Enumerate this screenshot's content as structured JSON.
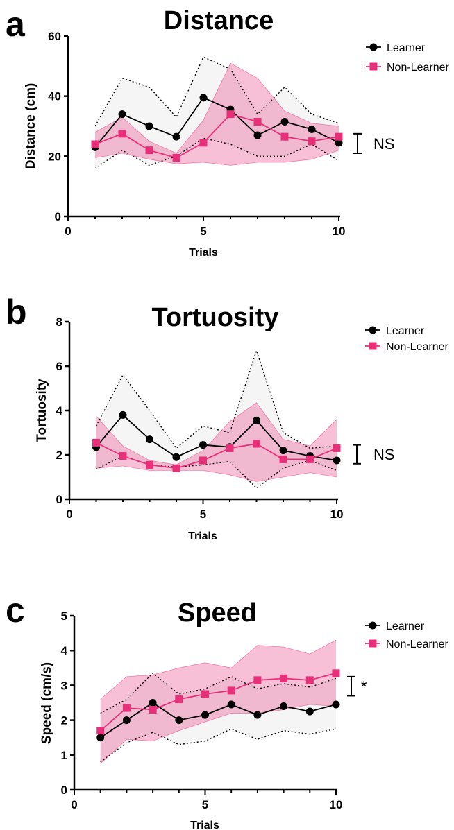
{
  "chart_data": [
    {
      "type": "line",
      "panel_label": "a",
      "title": "Distance",
      "xlabel": "Trials",
      "ylabel": "Distance (cm)",
      "xlim": [
        0,
        10
      ],
      "ylim": [
        0,
        60
      ],
      "xticks": [
        "0",
        "5",
        "10"
      ],
      "yticks": [
        "0",
        "20",
        "40",
        "60"
      ],
      "grid": false,
      "legend_position": "top-right",
      "x": [
        1,
        2,
        3,
        4,
        5,
        6,
        7,
        8,
        9,
        10
      ],
      "series": [
        {
          "name": "Learner",
          "color": "#000000",
          "marker": "circle",
          "values": [
            23.0,
            34.0,
            30.0,
            26.5,
            39.5,
            35.5,
            27.0,
            31.5,
            29.0,
            24.5
          ],
          "upper": [
            30.0,
            46.0,
            43.0,
            33.0,
            53.0,
            49.0,
            34.0,
            43.0,
            34.0,
            31.0
          ],
          "lower": [
            16.0,
            22.0,
            17.0,
            20.0,
            26.0,
            24.0,
            20.0,
            20.0,
            24.0,
            18.5
          ]
        },
        {
          "name": "Non-Learner",
          "color": "#e8307a",
          "marker": "square",
          "values": [
            24.0,
            27.5,
            22.0,
            19.5,
            24.5,
            34.0,
            31.5,
            26.5,
            25.0,
            26.5
          ],
          "upper": [
            28.0,
            33.0,
            25.0,
            21.0,
            32.0,
            51.0,
            46.0,
            35.0,
            31.0,
            30.0
          ],
          "lower": [
            19.5,
            21.0,
            19.0,
            17.5,
            18.0,
            17.0,
            18.0,
            18.0,
            19.0,
            22.0
          ]
        }
      ],
      "significance": "NS",
      "sig_range": [
        21.0,
        27.5
      ]
    },
    {
      "type": "line",
      "panel_label": "b",
      "title": "Tortuosity",
      "xlabel": "Trials",
      "ylabel": "Tortuosity",
      "xlim": [
        0,
        10
      ],
      "ylim": [
        0,
        8
      ],
      "xticks": [
        "0",
        "5",
        "10"
      ],
      "yticks": [
        "0",
        "2",
        "4",
        "6",
        "8"
      ],
      "grid": false,
      "legend_position": "top-right",
      "x": [
        1,
        2,
        3,
        4,
        5,
        6,
        7,
        8,
        9,
        10
      ],
      "series": [
        {
          "name": "Learner",
          "color": "#000000",
          "marker": "circle",
          "values": [
            2.35,
            3.8,
            2.7,
            1.9,
            2.45,
            2.35,
            3.55,
            2.2,
            1.95,
            1.75
          ],
          "upper": [
            3.3,
            5.6,
            4.0,
            2.3,
            3.3,
            3.0,
            6.7,
            3.0,
            2.3,
            2.4
          ],
          "lower": [
            1.35,
            1.95,
            1.55,
            1.45,
            1.55,
            1.7,
            0.5,
            1.4,
            1.75,
            1.3
          ]
        },
        {
          "name": "Non-Learner",
          "color": "#e8307a",
          "marker": "square",
          "values": [
            2.55,
            1.95,
            1.55,
            1.4,
            1.75,
            2.3,
            2.5,
            1.8,
            1.8,
            2.3
          ],
          "upper": [
            3.75,
            2.4,
            1.75,
            1.55,
            2.2,
            3.5,
            4.35,
            2.7,
            2.4,
            3.6
          ],
          "lower": [
            1.4,
            1.5,
            1.3,
            1.3,
            1.3,
            1.1,
            0.8,
            1.0,
            1.2,
            1.0
          ]
        }
      ],
      "significance": "NS",
      "sig_range": [
        1.6,
        2.45
      ]
    },
    {
      "type": "line",
      "panel_label": "c",
      "title": "Speed",
      "xlabel": "Trials",
      "ylabel": "Speed (cm/s)",
      "xlim": [
        0,
        10
      ],
      "ylim": [
        0,
        5
      ],
      "xticks": [
        "0",
        "5",
        "10"
      ],
      "yticks": [
        "0",
        "1",
        "2",
        "3",
        "4",
        "5"
      ],
      "grid": false,
      "legend_position": "top-right",
      "x": [
        1,
        2,
        3,
        4,
        5,
        6,
        7,
        8,
        9,
        10
      ],
      "series": [
        {
          "name": "Learner",
          "color": "#000000",
          "marker": "circle",
          "values": [
            1.5,
            2.0,
            2.5,
            2.0,
            2.15,
            2.45,
            2.15,
            2.4,
            2.25,
            2.45
          ],
          "upper": [
            2.2,
            2.6,
            3.35,
            2.75,
            2.9,
            3.25,
            2.9,
            3.05,
            2.95,
            3.2
          ],
          "lower": [
            0.8,
            1.35,
            1.65,
            1.3,
            1.4,
            1.75,
            1.45,
            1.7,
            1.6,
            1.75
          ]
        },
        {
          "name": "Non-Learner",
          "color": "#e8307a",
          "marker": "square",
          "values": [
            1.7,
            2.35,
            2.3,
            2.6,
            2.75,
            2.85,
            3.15,
            3.2,
            3.15,
            3.35
          ],
          "upper": [
            2.6,
            3.25,
            3.3,
            3.5,
            3.65,
            3.5,
            4.15,
            4.1,
            3.9,
            4.3
          ],
          "lower": [
            0.75,
            1.45,
            1.4,
            1.7,
            1.95,
            2.2,
            2.2,
            2.3,
            2.45,
            2.4
          ]
        }
      ],
      "significance": "*",
      "sig_range": [
        2.7,
        3.25
      ]
    }
  ]
}
